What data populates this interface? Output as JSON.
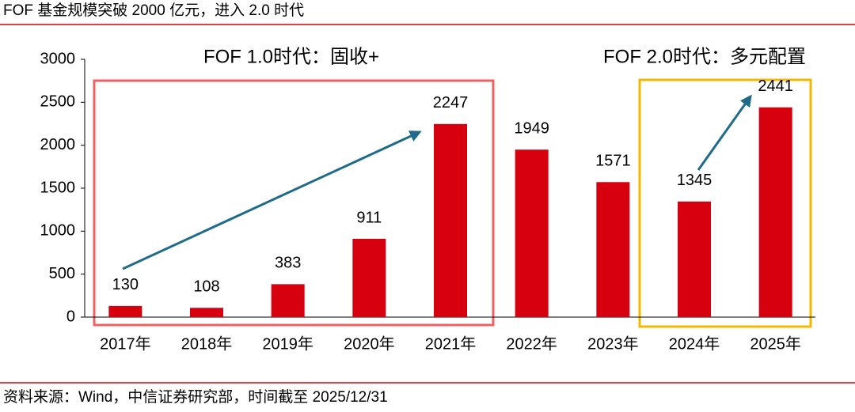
{
  "chart_data": {
    "type": "bar",
    "title": "FOF 基金规模突破 2000 亿元，进入 2.0 时代",
    "annotations": [
      "FOF 1.0时代：固收+",
      "FOF 2.0时代：多元配置"
    ],
    "source": "资料来源：Wind，中信证券研究部，时间截至 2025/12/31",
    "categories": [
      "2017年",
      "2018年",
      "2019年",
      "2020年",
      "2021年",
      "2022年",
      "2023年",
      "2024年",
      "2025年"
    ],
    "values": [
      130,
      108,
      383,
      911,
      2247,
      1949,
      1571,
      1345,
      2441
    ],
    "color": "#d7000f",
    "ylim": [
      0,
      3000
    ],
    "yticks": [
      0,
      500,
      1000,
      1500,
      2000,
      2500,
      3000
    ],
    "grid": false
  }
}
